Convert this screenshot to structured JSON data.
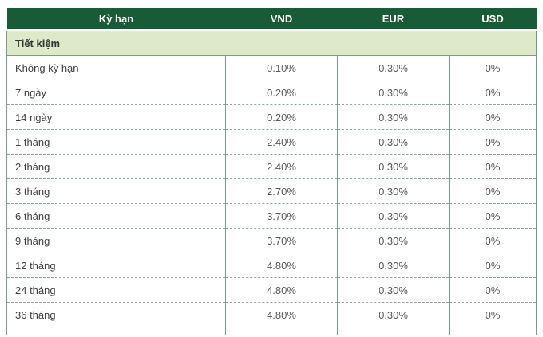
{
  "table": {
    "columns": [
      "Kỳ hạn",
      "VND",
      "EUR",
      "USD"
    ],
    "section_label": "Tiết kiệm",
    "rows": [
      {
        "term": "Không kỳ hạn",
        "vnd": "0.10%",
        "eur": "0.30%",
        "usd": "0%"
      },
      {
        "term": "7 ngày",
        "vnd": "0.20%",
        "eur": "0.30%",
        "usd": "0%"
      },
      {
        "term": "14 ngày",
        "vnd": "0.20%",
        "eur": "0.30%",
        "usd": "0%"
      },
      {
        "term": "1 tháng",
        "vnd": "2.40%",
        "eur": "0.30%",
        "usd": "0%"
      },
      {
        "term": "2 tháng",
        "vnd": "2.40%",
        "eur": "0.30%",
        "usd": "0%"
      },
      {
        "term": "3 tháng",
        "vnd": "2.70%",
        "eur": "0.30%",
        "usd": "0%"
      },
      {
        "term": "6 tháng",
        "vnd": "3.70%",
        "eur": "0.30%",
        "usd": "0%"
      },
      {
        "term": "9 tháng",
        "vnd": "3.70%",
        "eur": "0.30%",
        "usd": "0%"
      },
      {
        "term": "12 tháng",
        "vnd": "4.80%",
        "eur": "0.30%",
        "usd": "0%"
      },
      {
        "term": "24 tháng",
        "vnd": "4.80%",
        "eur": "0.30%",
        "usd": "0%"
      },
      {
        "term": "36 tháng",
        "vnd": "4.80%",
        "eur": "0.30%",
        "usd": "0%"
      }
    ]
  },
  "colors": {
    "header_background": "#1a5b37",
    "header_text": "#ffffff",
    "section_background": "#dde9c9",
    "solid_border": "#7d998a",
    "dashed_border": "#8fa899"
  }
}
